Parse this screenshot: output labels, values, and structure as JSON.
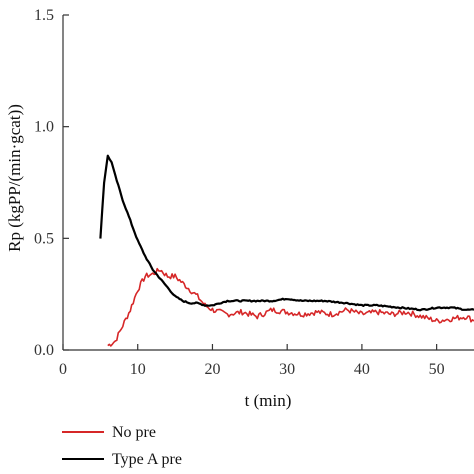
{
  "chart_data": {
    "type": "line",
    "title": "",
    "xlabel": "t (min)",
    "ylabel": "Rp (kgPP/(min·gcat))",
    "xlim": [
      0,
      55
    ],
    "ylim": [
      0,
      1.5
    ],
    "x_ticks": [
      0,
      10,
      20,
      30,
      40,
      50
    ],
    "y_ticks": [
      0.0,
      0.5,
      1.0,
      1.5
    ],
    "x_tick_labels": [
      "0",
      "10",
      "20",
      "30",
      "40",
      "50"
    ],
    "y_tick_labels": [
      "0.0",
      "0.5",
      "1.0",
      "1.5"
    ],
    "grid": false,
    "legend_position": "bottom-left",
    "series": [
      {
        "name": "No pre",
        "color": "#d62728",
        "x": [
          6,
          7,
          8,
          9,
          10,
          11,
          12,
          13,
          14,
          15,
          16,
          17,
          18,
          19,
          20,
          22,
          24,
          26,
          28,
          30,
          32,
          34,
          36,
          38,
          40,
          42,
          44,
          46,
          48,
          50,
          52,
          54,
          55
        ],
        "y": [
          0.02,
          0.04,
          0.11,
          0.18,
          0.27,
          0.33,
          0.34,
          0.36,
          0.33,
          0.33,
          0.3,
          0.27,
          0.24,
          0.2,
          0.18,
          0.16,
          0.17,
          0.15,
          0.18,
          0.17,
          0.16,
          0.17,
          0.16,
          0.18,
          0.16,
          0.17,
          0.16,
          0.17,
          0.15,
          0.13,
          0.14,
          0.15,
          0.13
        ]
      },
      {
        "name": "Type A pre",
        "color": "#000000",
        "x": [
          5,
          5.5,
          6,
          6.5,
          7,
          8,
          9,
          10,
          11,
          12,
          13,
          14,
          15,
          16,
          17,
          18,
          19,
          20,
          22,
          25,
          28,
          30,
          32,
          35,
          38,
          40,
          42,
          45,
          48,
          50,
          52,
          54,
          55
        ],
        "y": [
          0.5,
          0.75,
          0.87,
          0.84,
          0.78,
          0.67,
          0.58,
          0.49,
          0.42,
          0.36,
          0.32,
          0.28,
          0.24,
          0.22,
          0.21,
          0.21,
          0.2,
          0.2,
          0.22,
          0.22,
          0.22,
          0.23,
          0.22,
          0.22,
          0.21,
          0.2,
          0.2,
          0.19,
          0.18,
          0.19,
          0.19,
          0.18,
          0.18
        ]
      }
    ]
  }
}
